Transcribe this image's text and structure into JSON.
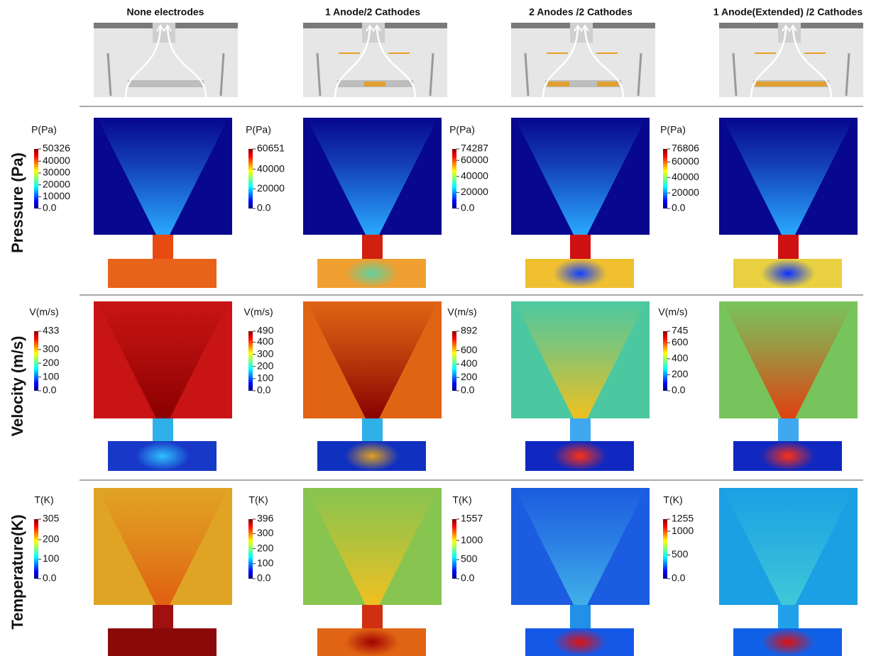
{
  "columns": [
    "None electrodes",
    "1 Anode/2 Cathodes",
    "2 Anodes /2 Cathodes",
    "1 Anode(Extended) /2 Cathodes"
  ],
  "rows": [
    {
      "label": "Pressure (Pa)",
      "colorbars": [
        {
          "title": "P(Pa)",
          "lim": [
            0,
            50326
          ],
          "ticks": [
            {
              "value": 0,
              "label": "0.0"
            },
            10000,
            20000,
            30000,
            40000,
            50326
          ]
        },
        {
          "title": "P(Pa)",
          "lim": [
            0,
            60651
          ],
          "ticks": [
            {
              "value": 0,
              "label": "0.0"
            },
            20000,
            40000,
            60651
          ]
        },
        {
          "title": "P(Pa)",
          "lim": [
            0,
            74287
          ],
          "ticks": [
            {
              "value": 0,
              "label": "0.0"
            },
            20000,
            40000,
            60000,
            74287
          ]
        },
        {
          "title": "P(Pa)",
          "lim": [
            0,
            76806
          ],
          "ticks": [
            {
              "value": 0,
              "label": "0.0"
            },
            20000,
            40000,
            60000,
            76806
          ]
        }
      ]
    },
    {
      "label": "Velocity (m/s)",
      "colorbars": [
        {
          "title": "V(m/s)",
          "lim": [
            0,
            433
          ],
          "ticks": [
            {
              "value": 0,
              "label": "0.0"
            },
            100,
            200,
            300,
            433
          ]
        },
        {
          "title": "V(m/s)",
          "lim": [
            0,
            490
          ],
          "ticks": [
            {
              "value": 0,
              "label": "0.0"
            },
            100,
            200,
            300,
            400,
            490
          ]
        },
        {
          "title": "V(m/s)",
          "lim": [
            0,
            892
          ],
          "ticks": [
            {
              "value": 0,
              "label": "0.0"
            },
            200,
            400,
            600,
            892
          ]
        },
        {
          "title": "V(m/s)",
          "lim": [
            0,
            745
          ],
          "ticks": [
            {
              "value": 0,
              "label": "0.0"
            },
            200,
            400,
            600,
            745
          ]
        }
      ]
    },
    {
      "label": "Temperature(K)",
      "colorbars": [
        {
          "title": "T(K)",
          "lim": [
            0,
            305
          ],
          "ticks": [
            {
              "value": 0,
              "label": "0.0"
            },
            100,
            200,
            305
          ]
        },
        {
          "title": "T(K)",
          "lim": [
            0,
            396
          ],
          "ticks": [
            {
              "value": 0,
              "label": "0.0"
            },
            100,
            200,
            300,
            396
          ]
        },
        {
          "title": "T(K)",
          "lim": [
            0,
            1557
          ],
          "ticks": [
            {
              "value": 0,
              "label": "0.0"
            },
            500,
            1000,
            1557
          ]
        },
        {
          "title": "T(K)",
          "lim": [
            0,
            1255
          ],
          "ticks": [
            {
              "value": 0,
              "label": "0.0"
            },
            500,
            1000,
            1255
          ]
        }
      ]
    }
  ]
}
